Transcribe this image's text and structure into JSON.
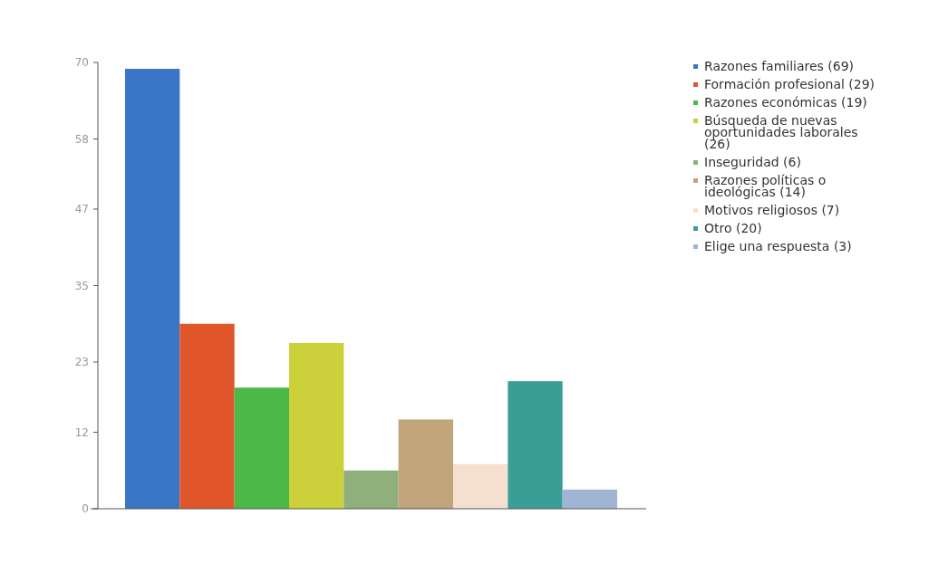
{
  "chart_data": {
    "type": "bar",
    "categories": [
      null
    ],
    "series": [
      {
        "name": "Razones familiares (69)",
        "color": "#3a74c4",
        "values": [
          69
        ]
      },
      {
        "name": "Formación profesional (29)",
        "color": "#e0562a",
        "values": [
          29
        ]
      },
      {
        "name": "Razones económicas (19)",
        "color": "#4cb848",
        "values": [
          19
        ]
      },
      {
        "name": "Búsqueda de nuevas oportunidades laborales (26)",
        "color": "#ccd03a",
        "values": [
          26
        ]
      },
      {
        "name": "Inseguridad (6)",
        "color": "#8fb07a",
        "values": [
          6
        ]
      },
      {
        "name": "Razones políticas o ideológicas (14)",
        "color": "#c0a47a",
        "values": [
          14
        ]
      },
      {
        "name": "Motivos religiosos (7)",
        "color": "#f5e0d0",
        "values": [
          7
        ]
      },
      {
        "name": "Otro (20)",
        "color": "#3a9e96",
        "values": [
          20
        ]
      },
      {
        "name": "Elige una respuesta (3)",
        "color": "#a0b4d4",
        "values": [
          3
        ]
      }
    ],
    "ylim": [
      0,
      70
    ],
    "yticks": [
      0,
      12,
      23,
      35,
      47,
      58,
      70
    ],
    "legend": "right"
  }
}
